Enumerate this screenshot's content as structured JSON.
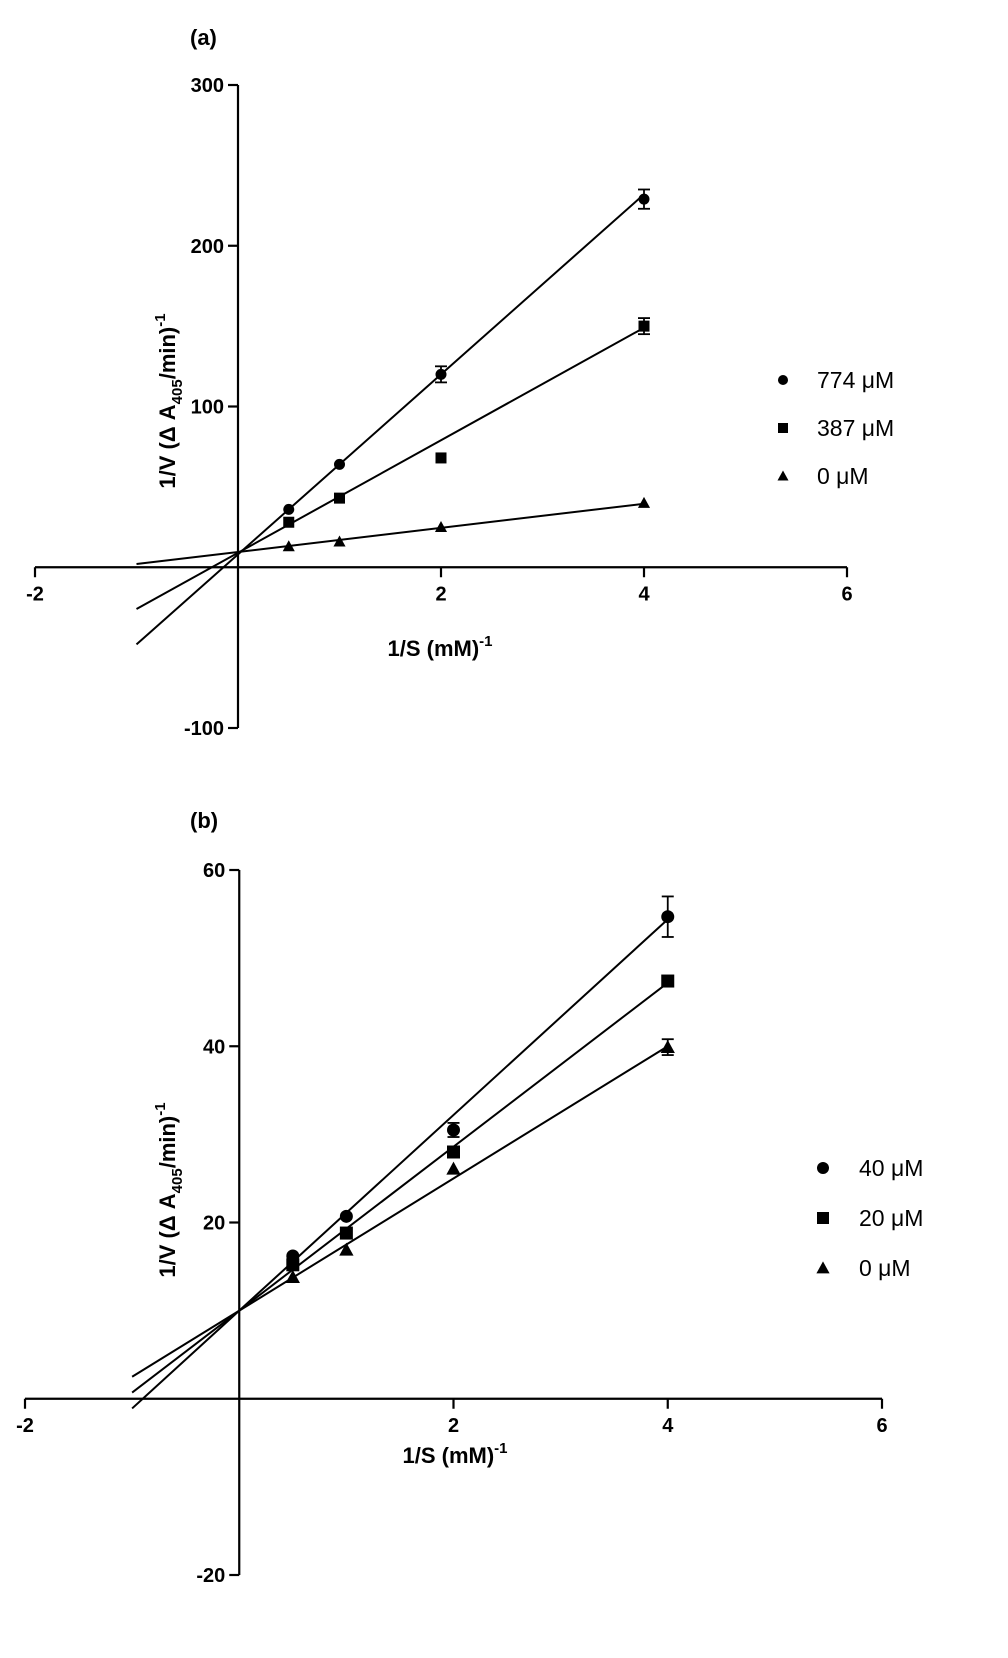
{
  "chart_data": [
    {
      "type": "scatter",
      "panel_label": "(a)",
      "xlabel": "1/S (mM)",
      "xlabel_superscript": "-1",
      "ylabel_prefix": "1/V (Δ A",
      "ylabel_subscript": "405",
      "ylabel_suffix": "/min)",
      "ylabel_superscript": "-1",
      "xlim": [
        -2,
        6
      ],
      "ylim": [
        -100,
        300
      ],
      "xticks": [
        -2,
        2,
        4,
        6
      ],
      "yticks": [
        -100,
        100,
        200,
        300
      ],
      "x_tick_labels": [
        "-2",
        "2",
        "4",
        "6"
      ],
      "y_tick_labels": [
        "-100",
        "100",
        "200",
        "300"
      ],
      "legend_position": "right",
      "series": [
        {
          "name": "774 μM",
          "marker": "circle",
          "x": [
            0.5,
            1,
            2,
            4
          ],
          "y": [
            36,
            64,
            120,
            229
          ],
          "err": [
            0,
            0,
            5,
            6
          ],
          "fit": {
            "slope": 56,
            "intercept": 8,
            "x_range": [
              -1,
              4
            ]
          }
        },
        {
          "name": "387 μM",
          "marker": "square",
          "x": [
            0.5,
            1,
            2,
            4
          ],
          "y": [
            28,
            43,
            68,
            150
          ],
          "err": [
            0,
            0,
            0,
            5
          ],
          "fit": {
            "slope": 35,
            "intercept": 9,
            "x_range": [
              -1,
              4
            ]
          }
        },
        {
          "name": "0 μM",
          "marker": "triangle",
          "x": [
            0.5,
            1,
            2,
            4
          ],
          "y": [
            13,
            16,
            25,
            40
          ],
          "err": [
            0,
            0,
            0,
            0
          ],
          "fit": {
            "slope": 7.5,
            "intercept": 9.5,
            "x_range": [
              -1,
              4
            ]
          }
        }
      ]
    },
    {
      "type": "scatter",
      "panel_label": "(b)",
      "xlabel": "1/S (mM)",
      "xlabel_superscript": "-1",
      "ylabel_prefix": "1/V (Δ A",
      "ylabel_subscript": "405",
      "ylabel_suffix": "/min)",
      "ylabel_superscript": "-1",
      "xlim": [
        -2,
        6
      ],
      "ylim": [
        -20,
        60
      ],
      "xticks": [
        -2,
        2,
        4,
        6
      ],
      "yticks": [
        -20,
        20,
        40,
        60
      ],
      "x_tick_labels": [
        "-2",
        "2",
        "4",
        "6"
      ],
      "y_tick_labels": [
        "-20",
        "20",
        "40",
        "60"
      ],
      "legend_position": "right",
      "series": [
        {
          "name": "40 μM",
          "marker": "circle",
          "x": [
            0.5,
            1,
            2,
            4
          ],
          "y": [
            16.2,
            20.7,
            30.5,
            54.7
          ],
          "err": [
            0,
            0,
            0.8,
            2.3
          ],
          "fit": {
            "slope": 11.1,
            "intercept": 10,
            "x_range": [
              -1,
              4
            ]
          }
        },
        {
          "name": "20 μM",
          "marker": "square",
          "x": [
            0.5,
            1,
            2,
            4
          ],
          "y": [
            15.2,
            18.8,
            28.0,
            47.4
          ],
          "err": [
            0,
            0,
            0,
            0
          ],
          "fit": {
            "slope": 9.3,
            "intercept": 10,
            "x_range": [
              -1,
              4
            ]
          }
        },
        {
          "name": "0  μM",
          "marker": "triangle",
          "x": [
            0.5,
            1,
            2,
            4
          ],
          "y": [
            13.8,
            16.9,
            26.1,
            39.9
          ],
          "err": [
            0,
            0,
            0,
            0.9
          ],
          "fit": {
            "slope": 7.5,
            "intercept": 10,
            "x_range": [
              -1,
              4
            ]
          }
        }
      ]
    }
  ]
}
